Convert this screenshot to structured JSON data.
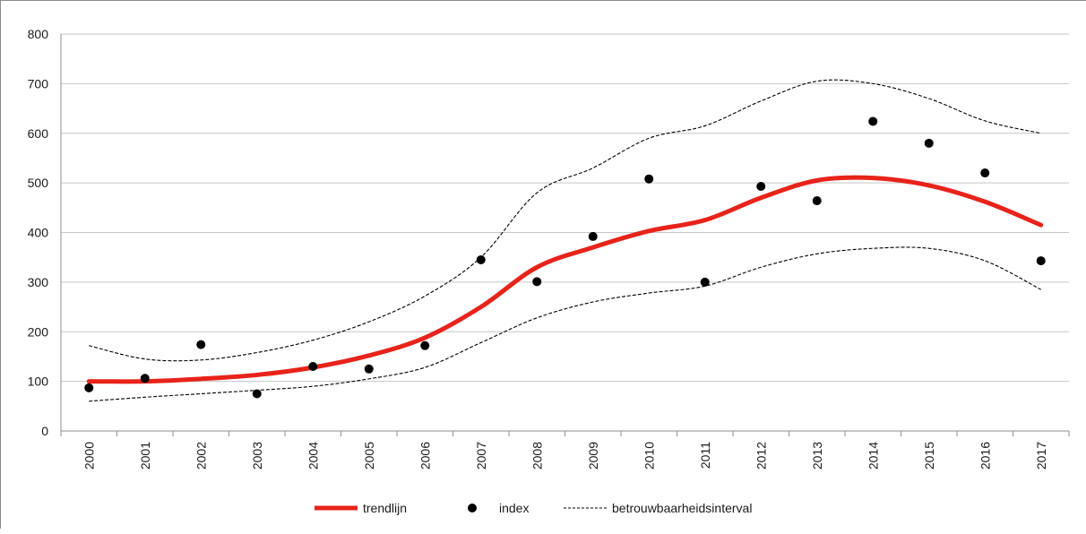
{
  "chart_data": {
    "type": "line",
    "title": "",
    "xlabel": "",
    "ylabel": "",
    "ylim": [
      0,
      800
    ],
    "yticks": [
      0,
      100,
      200,
      300,
      400,
      500,
      600,
      700,
      800
    ],
    "grid": true,
    "legend_position": "bottom",
    "categories": [
      "2000",
      "2001",
      "2002",
      "2003",
      "2004",
      "2005",
      "2006",
      "2007",
      "2008",
      "2009",
      "2010",
      "2011",
      "2012",
      "2013",
      "2014",
      "2015",
      "2016",
      "2017"
    ],
    "series": [
      {
        "name": "trendlijn",
        "style": "line",
        "color": "#e8231a",
        "values": [
          100,
          100,
          105,
          113,
          128,
          152,
          188,
          250,
          330,
          370,
          403,
          425,
          470,
          505,
          510,
          495,
          462,
          415
        ]
      },
      {
        "name": "index",
        "style": "markers",
        "color": "#000000",
        "values": [
          87,
          106,
          174,
          75,
          130,
          125,
          172,
          345,
          301,
          392,
          508,
          300,
          493,
          464,
          624,
          580,
          520,
          343
        ]
      },
      {
        "name": "betrouwbaarheidsinterval",
        "style": "dashed",
        "color": "#000000",
        "upper": [
          172,
          145,
          143,
          158,
          183,
          220,
          272,
          350,
          480,
          530,
          590,
          615,
          665,
          705,
          700,
          670,
          625,
          600
        ],
        "lower": [
          60,
          68,
          75,
          82,
          90,
          105,
          128,
          178,
          228,
          260,
          278,
          292,
          330,
          357,
          368,
          368,
          343,
          285
        ]
      }
    ]
  }
}
